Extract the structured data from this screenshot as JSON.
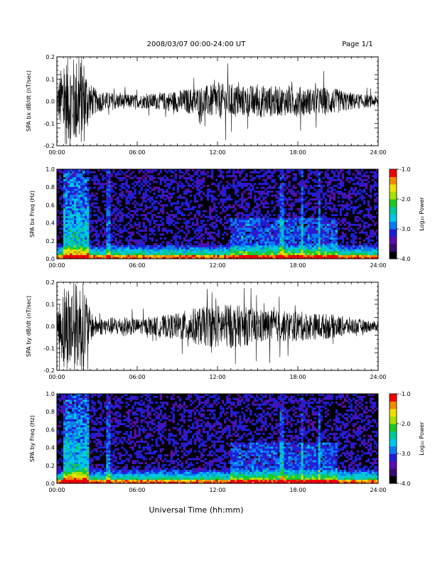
{
  "header": {
    "date_range": "2008/03/07  00:00-24:00 UT",
    "page": "Page 1/1"
  },
  "footer": {
    "x_title": "Universal Time (hh:mm)"
  },
  "time_ticks": [
    "00:00",
    "06:00",
    "12:00",
    "18:00",
    "24:00"
  ],
  "chart_data": [
    {
      "type": "line",
      "id": "bx-waveform",
      "ylabel": "SPA bx dB/dt (nT/sec)",
      "x": [
        0,
        6,
        12,
        18,
        24
      ],
      "xlim": [
        0,
        24
      ],
      "ylim": [
        -0.2,
        0.2
      ],
      "yticks": [
        0.2,
        0.1,
        0.0,
        -0.1,
        -0.2
      ],
      "ytick_labels": [
        "0.2",
        "0.1",
        "0.0",
        "-0.1",
        "-0.2"
      ],
      "envelope_hours": [
        0,
        0.5,
        1.0,
        1.5,
        2.0,
        2.5,
        3,
        4,
        5,
        6,
        7,
        8,
        9,
        10,
        11,
        12,
        13,
        14,
        15,
        16,
        17,
        18,
        19,
        20,
        21,
        22,
        23,
        24
      ],
      "envelope_amplitude": [
        0.06,
        0.2,
        0.2,
        0.2,
        0.2,
        0.08,
        0.05,
        0.04,
        0.035,
        0.03,
        0.035,
        0.04,
        0.05,
        0.06,
        0.07,
        0.08,
        0.08,
        0.07,
        0.075,
        0.07,
        0.065,
        0.07,
        0.06,
        0.065,
        0.055,
        0.04,
        0.03,
        0.025
      ],
      "line_color": "#000000"
    },
    {
      "type": "heatmap",
      "id": "bx-spectrogram",
      "ylabel": "SPA bx Freq (Hz)",
      "xlim": [
        0,
        24
      ],
      "ylim": [
        0,
        1.0
      ],
      "yticks": [
        1.0,
        0.8,
        0.6,
        0.4,
        0.2,
        0.0
      ],
      "ytick_labels": [
        "1.0",
        "0.8",
        "0.6",
        "0.4",
        "0.2",
        "0.0"
      ],
      "colorbar": {
        "label": "Log₁₀ Power",
        "range": [
          -4.0,
          -1.0
        ],
        "ticks": [
          "-1.0",
          "-2.0",
          "-3.0",
          "-4.0"
        ],
        "colors": [
          "#000000",
          "#3a0a6a",
          "#5a0ea8",
          "#1e1ed8",
          "#0a7cf0",
          "#00c8e8",
          "#00c89a",
          "#1ec81e",
          "#a8e000",
          "#f0e000",
          "#f08c00",
          "#f00000"
        ]
      }
    },
    {
      "type": "line",
      "id": "by-waveform",
      "ylabel": "SPA by dB/dt (nT/sec)",
      "x": [
        0,
        6,
        12,
        18,
        24
      ],
      "xlim": [
        0,
        24
      ],
      "ylim": [
        -0.2,
        0.2
      ],
      "yticks": [
        0.2,
        0.1,
        0.0,
        -0.1,
        -0.2
      ],
      "ytick_labels": [
        "0.2",
        "0.1",
        "0.0",
        "-0.1",
        "-0.2"
      ],
      "envelope_hours": [
        0,
        0.5,
        1.0,
        1.5,
        2.0,
        2.5,
        3,
        4,
        5,
        6,
        7,
        8,
        9,
        10,
        11,
        12,
        13,
        14,
        15,
        16,
        17,
        18,
        19,
        20,
        21,
        22,
        23,
        24
      ],
      "envelope_amplitude": [
        0.05,
        0.2,
        0.2,
        0.2,
        0.2,
        0.07,
        0.04,
        0.04,
        0.045,
        0.035,
        0.04,
        0.05,
        0.06,
        0.08,
        0.09,
        0.1,
        0.1,
        0.09,
        0.08,
        0.075,
        0.07,
        0.07,
        0.06,
        0.06,
        0.05,
        0.04,
        0.03,
        0.02
      ],
      "line_color": "#000000"
    },
    {
      "type": "heatmap",
      "id": "by-spectrogram",
      "ylabel": "SPA by Freq (Hz)",
      "xlim": [
        0,
        24
      ],
      "ylim": [
        0,
        1.0
      ],
      "yticks": [
        1.0,
        0.8,
        0.6,
        0.4,
        0.2,
        0.0
      ],
      "ytick_labels": [
        "1.0",
        "0.8",
        "0.6",
        "0.4",
        "0.2",
        "0.0"
      ],
      "colorbar": {
        "label": "Log₁₀ Power",
        "range": [
          -4.0,
          -1.0
        ],
        "ticks": [
          "-1.0",
          "-2.0",
          "-3.0",
          "-4.0"
        ],
        "colors": [
          "#000000",
          "#3a0a6a",
          "#5a0ea8",
          "#1e1ed8",
          "#0a7cf0",
          "#00c8e8",
          "#00c89a",
          "#1ec81e",
          "#a8e000",
          "#f0e000",
          "#f08c00",
          "#f00000"
        ]
      }
    }
  ]
}
